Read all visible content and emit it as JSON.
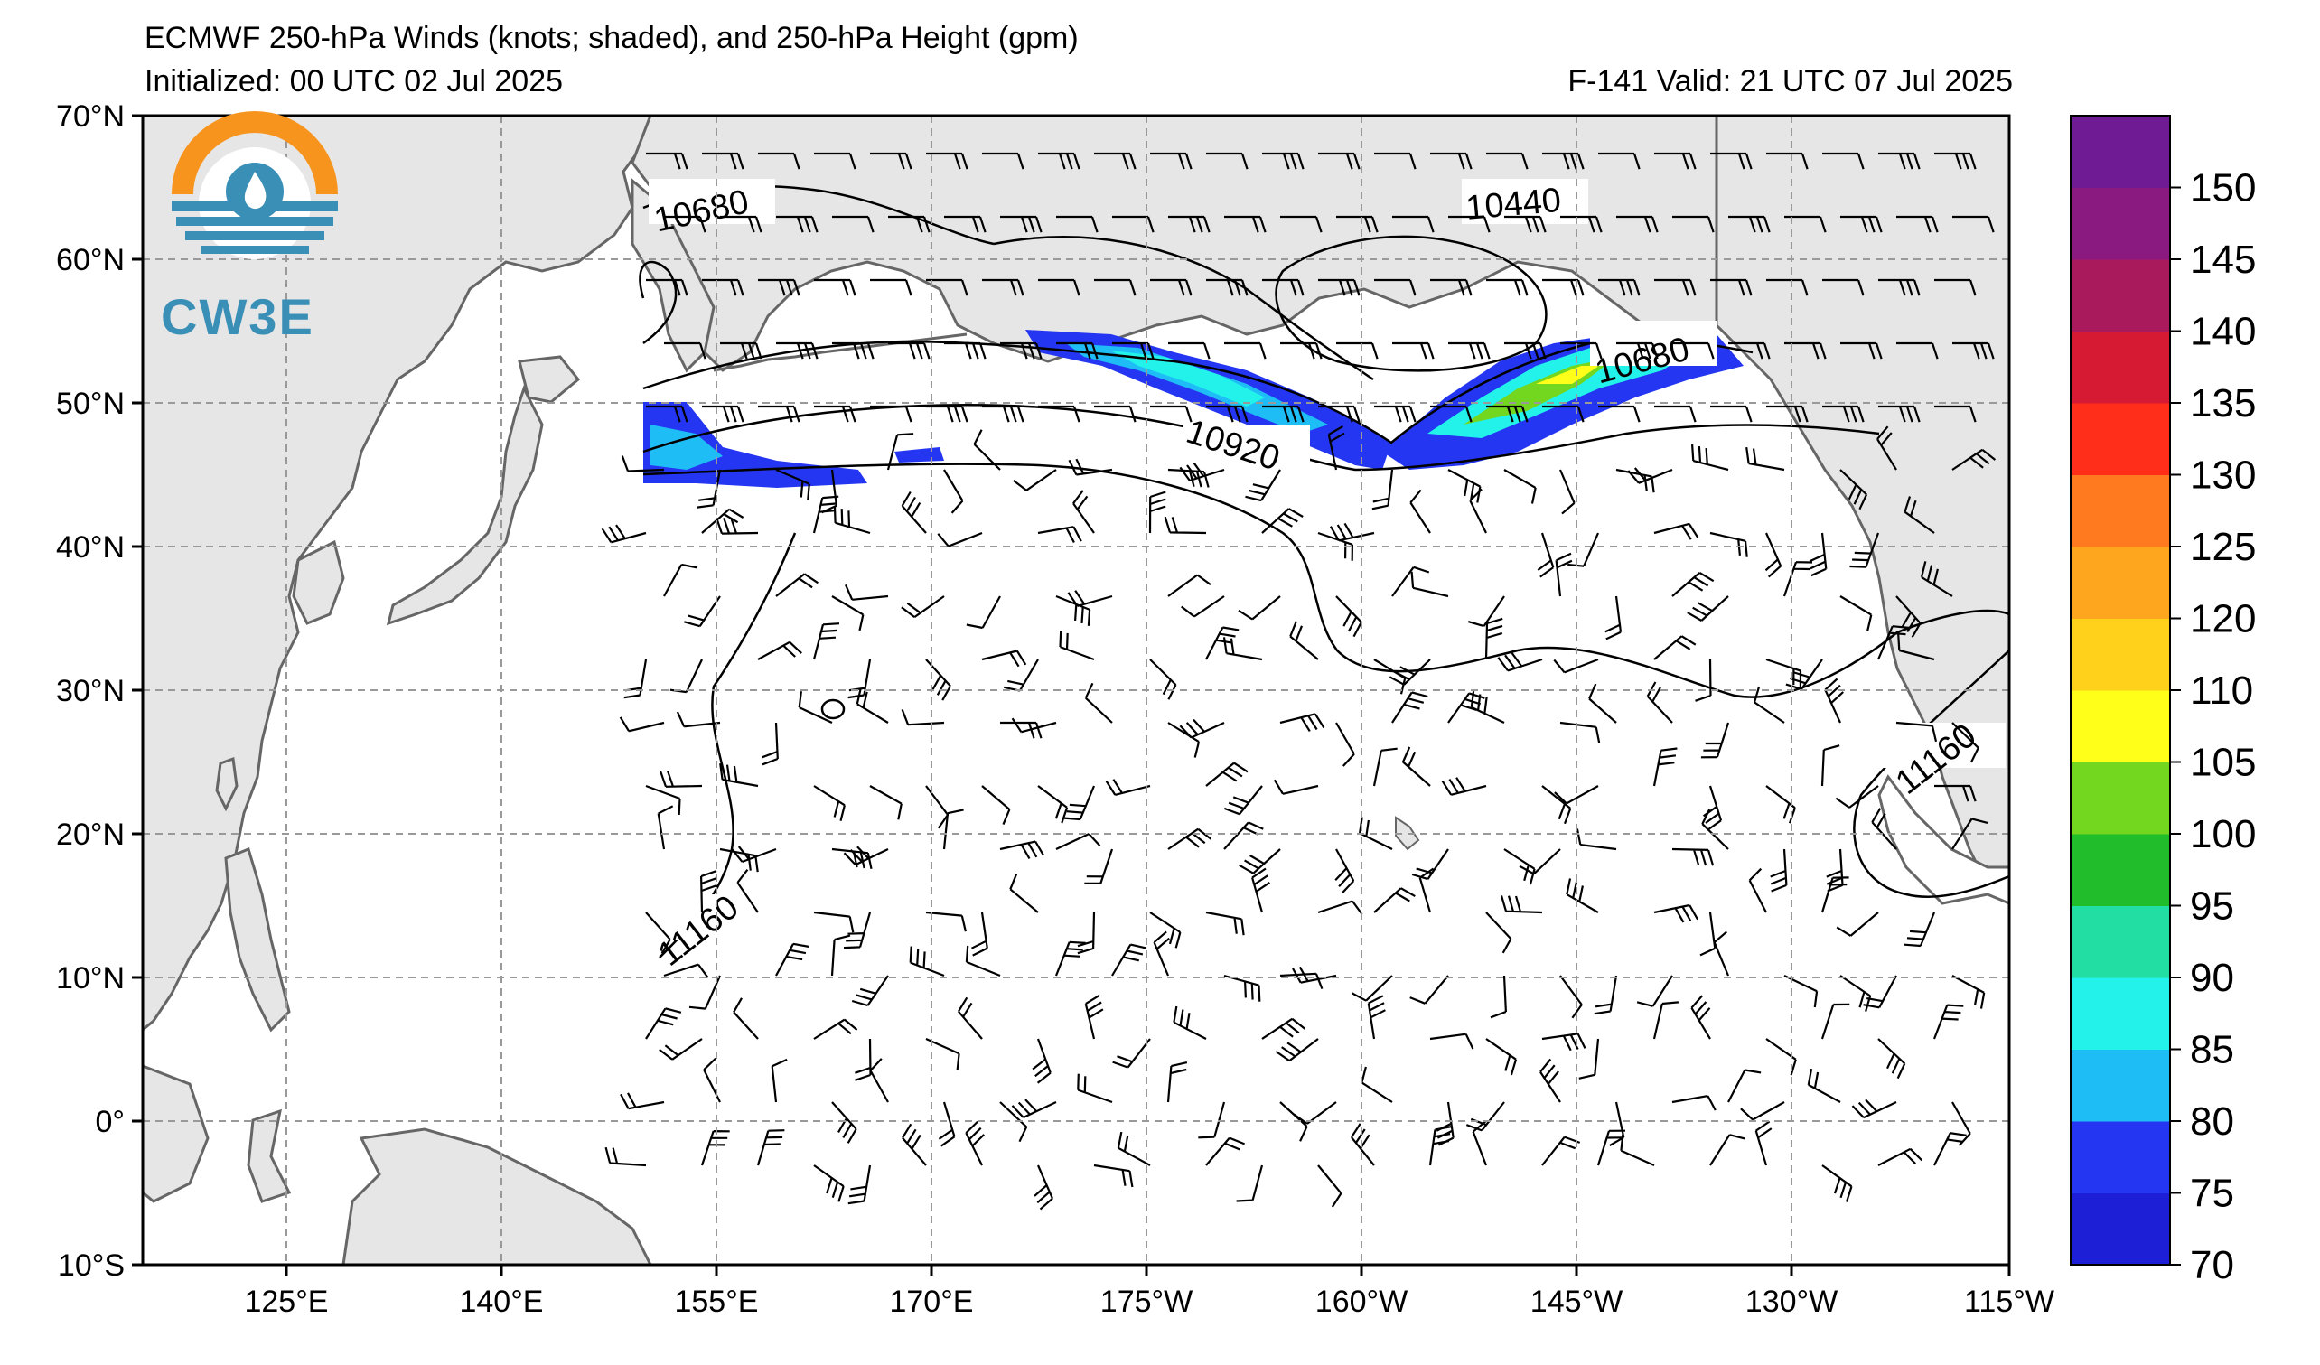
{
  "title": "ECMWF 250-hPa Winds (knots; shaded), and 250-hPa Height (gpm)",
  "initialized": "Initialized: 00 UTC 02 Jul 2025",
  "valid": "F-141  Valid: 21 UTC 07 Jul 2025",
  "logo": {
    "text": "CW3E",
    "icon": "cw3e-sun-drop-logo-icon"
  },
  "lat_labels": [
    "70°N",
    "60°N",
    "50°N",
    "40°N",
    "30°N",
    "20°N",
    "10°N",
    "0°",
    "10°S"
  ],
  "lon_labels": [
    "125°E",
    "140°E",
    "155°E",
    "170°E",
    "175°W",
    "160°W",
    "145°W",
    "130°W",
    "115°W"
  ],
  "contour_labels": [
    "10680",
    "10440",
    "10680",
    "10920",
    "11160",
    "11160"
  ],
  "colorbar": {
    "ticks": [
      "70",
      "75",
      "80",
      "85",
      "90",
      "95",
      "100",
      "105",
      "110",
      "120",
      "125",
      "130",
      "135",
      "140",
      "145",
      "150"
    ],
    "colors": [
      "#1c1fd6",
      "#2436f2",
      "#1fbdf5",
      "#22f2ea",
      "#22dea3",
      "#22bd2a",
      "#73d61f",
      "#ffff1a",
      "#ffd11a",
      "#ffa61f",
      "#ff7a1f",
      "#ff2e1a",
      "#d61a33",
      "#a81a5c",
      "#8a1a80",
      "#6f1c94"
    ]
  },
  "colors": {
    "land": "#e6e6e6",
    "coast": "#666666",
    "grid": "#999999"
  }
}
